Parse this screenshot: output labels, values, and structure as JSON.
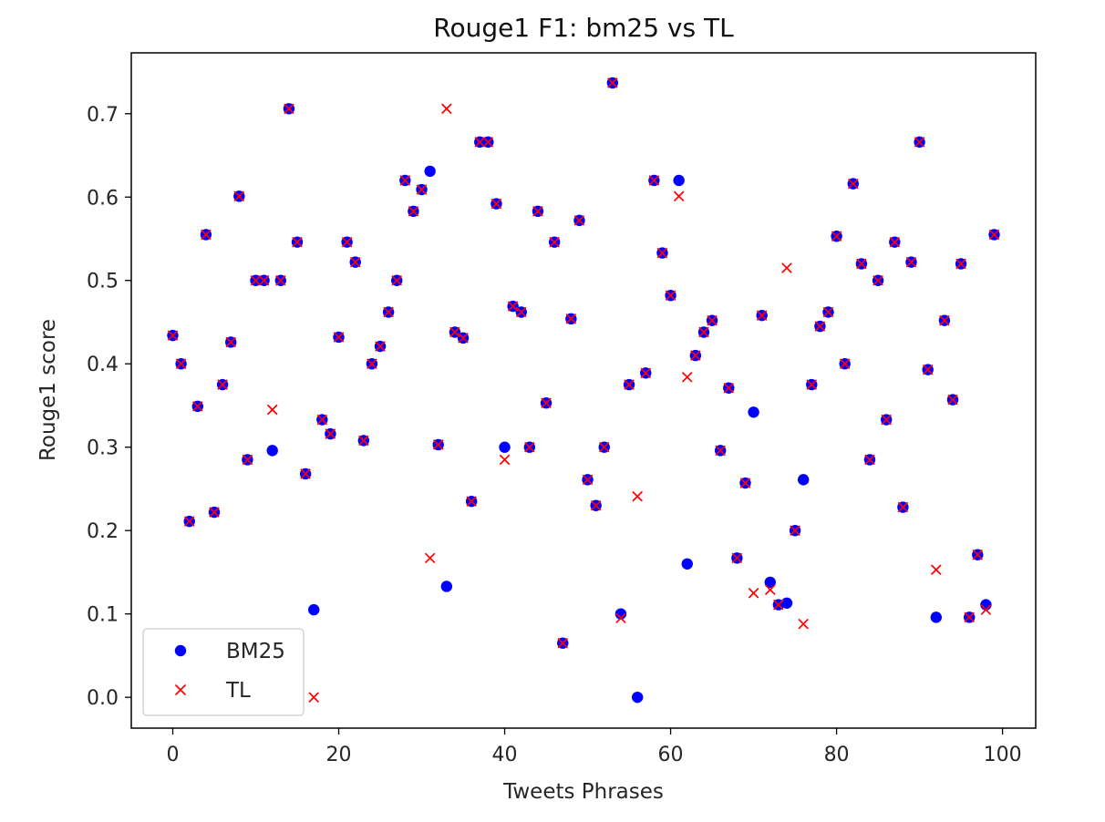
{
  "chart_data": {
    "type": "scatter",
    "title": "Rouge1 F1:  bm25 vs TL",
    "xlabel": "Tweets Phrases",
    "ylabel": "Rouge1 score",
    "xlim": [
      -5,
      104
    ],
    "ylim": [
      -0.037,
      0.773
    ],
    "xticks": [
      0,
      20,
      40,
      60,
      80,
      100
    ],
    "yticks": [
      0.0,
      0.1,
      0.2,
      0.3,
      0.4,
      0.5,
      0.6,
      0.7
    ],
    "grid": false,
    "legend_position": "lower-left",
    "x": [
      0,
      1,
      2,
      3,
      4,
      5,
      6,
      7,
      8,
      9,
      10,
      11,
      12,
      13,
      14,
      15,
      16,
      17,
      18,
      19,
      20,
      21,
      22,
      23,
      24,
      25,
      26,
      27,
      28,
      29,
      30,
      31,
      32,
      33,
      34,
      35,
      36,
      37,
      38,
      39,
      40,
      41,
      42,
      43,
      44,
      45,
      46,
      47,
      48,
      49,
      50,
      51,
      52,
      53,
      54,
      55,
      56,
      57,
      58,
      59,
      60,
      61,
      62,
      63,
      64,
      65,
      66,
      67,
      68,
      69,
      70,
      71,
      72,
      73,
      74,
      75,
      76,
      77,
      78,
      79,
      80,
      81,
      82,
      83,
      84,
      85,
      86,
      87,
      88,
      89,
      90,
      91,
      92,
      93,
      94,
      95,
      96,
      97,
      98,
      99
    ],
    "series": [
      {
        "name": "BM25",
        "color": "#0000ff",
        "marker": "circle",
        "values": [
          0.434,
          0.4,
          0.211,
          0.349,
          0.555,
          0.222,
          0.375,
          0.426,
          0.601,
          0.285,
          0.5,
          0.5,
          0.296,
          0.5,
          0.706,
          0.546,
          0.268,
          0.105,
          0.333,
          0.316,
          0.432,
          0.546,
          0.522,
          0.308,
          0.4,
          0.421,
          0.462,
          0.5,
          0.62,
          0.583,
          0.609,
          0.631,
          0.303,
          0.133,
          0.438,
          0.431,
          0.235,
          0.666,
          0.666,
          0.592,
          0.3,
          0.469,
          0.462,
          0.3,
          0.583,
          0.353,
          0.546,
          0.065,
          0.454,
          0.572,
          0.261,
          0.23,
          0.3,
          0.737,
          0.1,
          0.375,
          0.0,
          0.389,
          0.62,
          0.533,
          0.482,
          0.62,
          0.16,
          0.41,
          0.438,
          0.452,
          0.296,
          0.371,
          0.167,
          0.257,
          0.342,
          0.458,
          0.138,
          0.111,
          0.113,
          0.2,
          0.261,
          0.375,
          0.445,
          0.462,
          0.553,
          0.4,
          0.616,
          0.52,
          0.285,
          0.5,
          0.333,
          0.546,
          0.228,
          0.522,
          0.666,
          0.393,
          0.096,
          0.452,
          0.357,
          0.52,
          0.096,
          0.171,
          0.111,
          0.555
        ]
      },
      {
        "name": "TL",
        "color": "#ff0000",
        "marker": "x",
        "values": [
          0.434,
          0.4,
          0.211,
          0.349,
          0.555,
          0.222,
          0.375,
          0.426,
          0.601,
          0.285,
          0.5,
          0.5,
          0.345,
          0.5,
          0.706,
          0.546,
          0.268,
          0.0,
          0.333,
          0.316,
          0.432,
          0.546,
          0.522,
          0.308,
          0.4,
          0.421,
          0.462,
          0.5,
          0.62,
          0.583,
          0.609,
          0.167,
          0.303,
          0.706,
          0.438,
          0.431,
          0.235,
          0.666,
          0.666,
          0.592,
          0.285,
          0.469,
          0.462,
          0.3,
          0.583,
          0.353,
          0.546,
          0.065,
          0.454,
          0.572,
          0.261,
          0.23,
          0.3,
          0.737,
          0.095,
          0.375,
          0.241,
          0.389,
          0.62,
          0.533,
          0.482,
          0.601,
          0.384,
          0.41,
          0.438,
          0.452,
          0.296,
          0.371,
          0.167,
          0.257,
          0.125,
          0.458,
          0.129,
          0.111,
          0.515,
          0.2,
          0.088,
          0.375,
          0.445,
          0.462,
          0.553,
          0.4,
          0.616,
          0.52,
          0.285,
          0.5,
          0.333,
          0.546,
          0.228,
          0.522,
          0.666,
          0.393,
          0.153,
          0.452,
          0.357,
          0.52,
          0.096,
          0.171,
          0.105,
          0.555
        ]
      }
    ]
  }
}
